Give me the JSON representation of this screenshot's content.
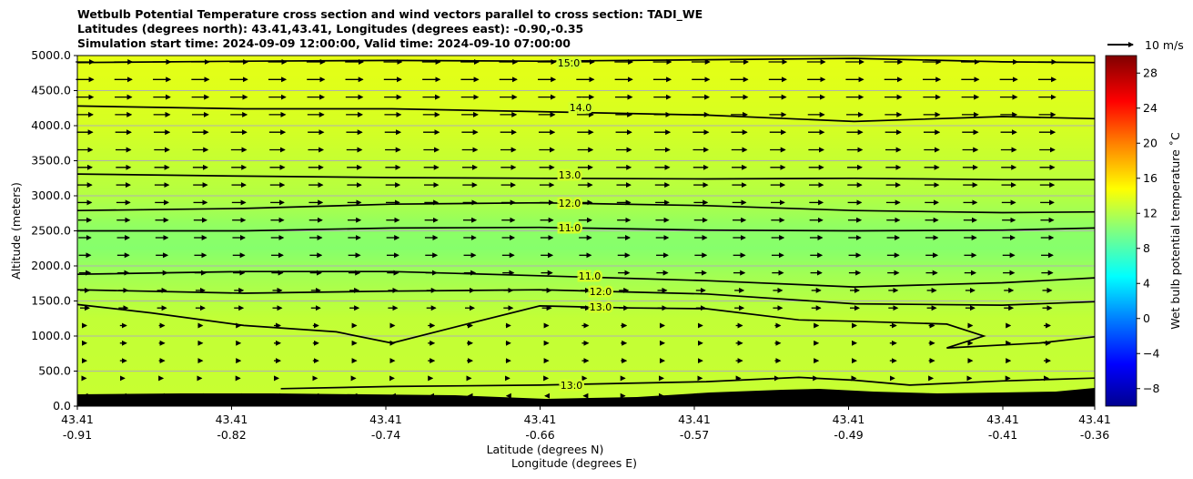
{
  "chart_data": {
    "type": "heatmap",
    "title_lines": [
      "Wetbulb Potential Temperature cross section and wind vectors parallel to cross section: TADI_WE",
      "Latitudes (degrees north): 43.41,43.41, Longitudes (degrees east): -0.90,-0.35",
      "Simulation start time: 2024-09-09 12:00:00, Valid time: 2024-09-10 07:00:00"
    ],
    "ylabel": "Altitude (meters)",
    "xlabel_lat": "Latitude (degrees N)",
    "xlabel_lon": "Longitude (degrees E)",
    "ylim": [
      0,
      5000
    ],
    "y_ticks": [
      "0.0",
      "500.0",
      "1000.0",
      "1500.0",
      "2000.0",
      "2500.0",
      "3000.0",
      "3500.0",
      "4000.0",
      "4500.0",
      "5000.0"
    ],
    "x_ticks": [
      {
        "lat": "43.41",
        "lon": "-0.91"
      },
      {
        "lat": "43.41",
        "lon": "-0.82"
      },
      {
        "lat": "43.41",
        "lon": "-0.74"
      },
      {
        "lat": "43.41",
        "lon": "-0.66"
      },
      {
        "lat": "43.41",
        "lon": "-0.57"
      },
      {
        "lat": "43.41",
        "lon": "-0.49"
      },
      {
        "lat": "43.41",
        "lon": "-0.41"
      },
      {
        "lat": "43.41",
        "lon": "-0.36"
      }
    ],
    "xlim_lon": [
      -0.91,
      -0.36
    ],
    "colorbar": {
      "label": "Wet bulb potential temperature ˚C",
      "range": [
        -10,
        30
      ],
      "ticks": [
        "−8",
        "−4",
        "0",
        "4",
        "8",
        "12",
        "16",
        "20",
        "24",
        "28"
      ]
    },
    "quiver_key": "10 m/s",
    "contour_labels": [
      "15.0",
      "14.0",
      "13.0",
      "12.0",
      "11.0",
      "11.0",
      "12.0",
      "13.0",
      "13.0"
    ],
    "contour_levels": [
      15,
      14,
      13,
      12,
      11,
      11,
      12,
      13,
      13
    ],
    "contours": [
      {
        "level": 15,
        "lon": [
          -0.91,
          -0.82,
          -0.74,
          -0.66,
          -0.57,
          -0.49,
          -0.41,
          -0.36
        ],
        "alt": [
          4900,
          4920,
          4930,
          4920,
          4940,
          4960,
          4910,
          4900
        ]
      },
      {
        "level": 14,
        "lon": [
          -0.91,
          -0.82,
          -0.74,
          -0.66,
          -0.57,
          -0.49,
          -0.41,
          -0.36
        ],
        "alt": [
          4280,
          4240,
          4240,
          4200,
          4150,
          4060,
          4130,
          4100
        ]
      },
      {
        "level": 13,
        "lon": [
          -0.91,
          -0.82,
          -0.74,
          -0.66,
          -0.57,
          -0.49,
          -0.41,
          -0.36
        ],
        "alt": [
          3310,
          3280,
          3260,
          3250,
          3240,
          3250,
          3230,
          3230
        ]
      },
      {
        "level": 12,
        "lon": [
          -0.91,
          -0.82,
          -0.74,
          -0.66,
          -0.57,
          -0.49,
          -0.41,
          -0.36
        ],
        "alt": [
          2790,
          2820,
          2880,
          2900,
          2860,
          2790,
          2760,
          2770
        ]
      },
      {
        "level": 11,
        "lon": [
          -0.91,
          -0.82,
          -0.74,
          -0.66,
          -0.57,
          -0.49,
          -0.41,
          -0.36
        ],
        "alt": [
          2500,
          2500,
          2540,
          2550,
          2510,
          2500,
          2510,
          2540
        ]
      },
      {
        "level": 11,
        "lon": [
          -0.91,
          -0.82,
          -0.74,
          -0.66,
          -0.57,
          -0.49,
          -0.41,
          -0.36
        ],
        "alt": [
          1880,
          1920,
          1920,
          1860,
          1790,
          1700,
          1760,
          1830
        ]
      },
      {
        "level": 12,
        "lon": [
          -0.91,
          -0.82,
          -0.74,
          -0.66,
          -0.57,
          -0.49,
          -0.41,
          -0.36
        ],
        "alt": [
          1660,
          1610,
          1640,
          1660,
          1600,
          1460,
          1440,
          1490
        ]
      },
      {
        "level": 13,
        "lon": [
          -0.91,
          -0.87,
          -0.82,
          -0.77,
          -0.74,
          -0.71,
          -0.66,
          -0.61,
          -0.57,
          -0.52,
          -0.49,
          -0.44,
          -0.42,
          -0.44,
          -0.39,
          -0.36
        ],
        "alt": [
          1450,
          1330,
          1150,
          1060,
          900,
          1100,
          1430,
          1400,
          1390,
          1230,
          1210,
          1170,
          1000,
          830,
          900,
          990
        ]
      },
      {
        "level": 13,
        "lon": [
          -0.8,
          -0.74,
          -0.66,
          -0.57,
          -0.52,
          -0.49,
          -0.46,
          -0.41,
          -0.36
        ],
        "alt": [
          250,
          280,
          300,
          350,
          410,
          370,
          300,
          360,
          400
        ]
      }
    ]
  }
}
